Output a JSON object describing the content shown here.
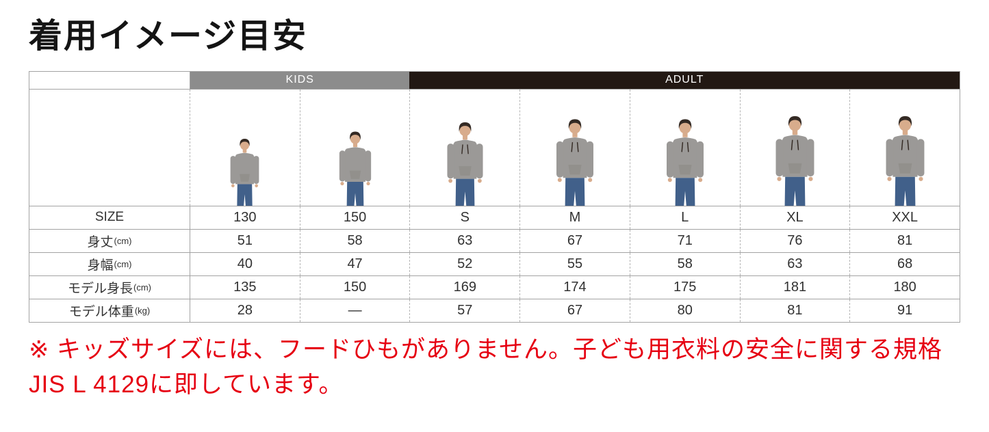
{
  "page": {
    "title": "着用イメージ目安"
  },
  "colors": {
    "kids_header_bg": "#8c8c8c",
    "adult_header_bg": "#221813",
    "header_text": "#ffffff",
    "note_red": "#e60012",
    "hoodie_gray": "#9b9997",
    "jeans_blue": "#41608a"
  },
  "table": {
    "groups": [
      {
        "label": "KIDS",
        "span": 2
      },
      {
        "label": "ADULT",
        "span": 5
      }
    ],
    "columns": [
      "130",
      "150",
      "S",
      "M",
      "L",
      "XL",
      "XXL"
    ],
    "photos": [
      {
        "name": "model-photo-130",
        "height_cm": 135,
        "kid": true
      },
      {
        "name": "model-photo-150",
        "height_cm": 150,
        "kid": true
      },
      {
        "name": "model-photo-s",
        "height_cm": 169,
        "kid": false
      },
      {
        "name": "model-photo-m",
        "height_cm": 174,
        "kid": false
      },
      {
        "name": "model-photo-l",
        "height_cm": 175,
        "kid": false
      },
      {
        "name": "model-photo-xl",
        "height_cm": 181,
        "kid": false
      },
      {
        "name": "model-photo-xxl",
        "height_cm": 180,
        "kid": false
      }
    ],
    "rows": [
      {
        "label": "SIZE",
        "unit": "",
        "values": [
          "130",
          "150",
          "S",
          "M",
          "L",
          "XL",
          "XXL"
        ]
      },
      {
        "label": "身丈",
        "unit": "(cm)",
        "values": [
          "51",
          "58",
          "63",
          "67",
          "71",
          "76",
          "81"
        ]
      },
      {
        "label": "身幅",
        "unit": "(cm)",
        "values": [
          "40",
          "47",
          "52",
          "55",
          "58",
          "63",
          "68"
        ]
      },
      {
        "label": "モデル身長",
        "unit": "(cm)",
        "values": [
          "135",
          "150",
          "169",
          "174",
          "175",
          "181",
          "180"
        ]
      },
      {
        "label": "モデル体重",
        "unit": "(kg)",
        "values": [
          "28",
          "—",
          "57",
          "67",
          "80",
          "81",
          "91"
        ]
      }
    ]
  },
  "note": {
    "text": "※ キッズサイズには、フードひもがありません。子ども用衣料の安全に関する規格JIS L 4129に即しています。"
  },
  "chart_data": {
    "type": "table",
    "title": "着用イメージ目安",
    "column_groups": [
      {
        "label": "KIDS",
        "columns": [
          "130",
          "150"
        ]
      },
      {
        "label": "ADULT",
        "columns": [
          "S",
          "M",
          "L",
          "XL",
          "XXL"
        ]
      }
    ],
    "categories": [
      "130",
      "150",
      "S",
      "M",
      "L",
      "XL",
      "XXL"
    ],
    "series": [
      {
        "name": "身丈(cm)",
        "values": [
          51,
          58,
          63,
          67,
          71,
          76,
          81
        ]
      },
      {
        "name": "身幅(cm)",
        "values": [
          40,
          47,
          52,
          55,
          58,
          63,
          68
        ]
      },
      {
        "name": "モデル身長(cm)",
        "values": [
          135,
          150,
          169,
          174,
          175,
          181,
          180
        ]
      },
      {
        "name": "モデル体重(kg)",
        "values": [
          28,
          null,
          57,
          67,
          80,
          81,
          91
        ]
      }
    ],
    "annotations": [
      "※ キッズサイズには、フードひもがありません。子ども用衣料の安全に関する規格JIS L 4129に即しています。"
    ]
  }
}
